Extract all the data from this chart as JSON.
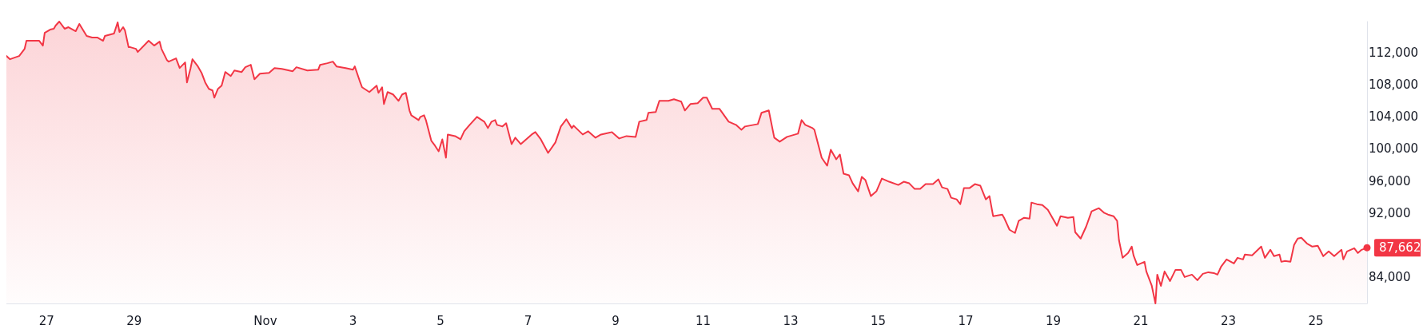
{
  "chart_data": {
    "type": "area",
    "color": "#f23645",
    "line_style": "solid",
    "marker": "none",
    "grid": false,
    "x": [
      "--10-26T02:00",
      "--10-26T04:00",
      "--10-26T09:00",
      "--10-26T12:00",
      "--10-26T13:00",
      "--10-26T15:00",
      "--10-26T20:00",
      "--10-26T22:00",
      "--10-26T23:00",
      "--10-27T02:00",
      "--10-27T04:00",
      "--10-27T05:00",
      "--10-27T07:00",
      "--10-27T10:00",
      "--10-27T12:00",
      "--10-27T16:00",
      "--10-27T18:00",
      "--10-27T22:00",
      "--10-28T01:00",
      "--10-28T04:00",
      "--10-28T07:00",
      "--10-28T08:00",
      "--10-28T13:00",
      "--10-28T15:00",
      "--10-28T16:00",
      "--10-28T18:00",
      "--10-28T19:00",
      "--10-28T21:00",
      "--10-28T22:00",
      "--10-29T01:00",
      "--10-29T02:00",
      "--10-29T08:00",
      "--10-29T11:00",
      "--10-29T14:00",
      "--10-29T15:00",
      "--10-29T18:00",
      "--10-29T19:00",
      "--10-29T23:00",
      "--10-30T01:00",
      "--10-30T04:00",
      "--10-30T05:00",
      "--10-30T07:00",
      "--10-30T08:00",
      "--10-30T11:00",
      "--10-30T13:00",
      "--10-30T15:00",
      "--10-30T17:00",
      "--10-30T19:00",
      "--10-30T20:00",
      "--10-30T22:00",
      "--10-31T00:00",
      "--10-31T02:00",
      "--10-31T05:00",
      "--10-31T07:00",
      "--10-31T11:00",
      "--10-31T13:00",
      "--10-31T16:00",
      "--10-31T18:00",
      "--10-31T21:00",
      "--11-01T02:00",
      "--11-01T05:00",
      "--11-01T09:00",
      "--11-01T15:00",
      "--11-01T17:00",
      "--11-01T23:00",
      "--11-02T05:00",
      "--11-02T06:00",
      "--11-02T10:00",
      "--11-02T13:00",
      "--11-02T15:00",
      "--11-02T20:00",
      "--11-03T00:00",
      "--11-03T01:00",
      "--11-03T04:00",
      "--11-03T05:00",
      "--11-03T09:00",
      "--11-03T13:00",
      "--11-03T14:00",
      "--11-03T16:00",
      "--11-03T17:00",
      "--11-03T19:00",
      "--11-03T22:00",
      "--11-04T01:00",
      "--11-04T03:00",
      "--11-04T05:00",
      "--11-04T07:00",
      "--11-04T08:00",
      "--11-04T12:00",
      "--11-04T13:00",
      "--11-04T15:00",
      "--11-04T16:00",
      "--11-04T19:00",
      "--11-04T21:00",
      "--11-04T23:00",
      "--11-05T01:00",
      "--11-05T03:00",
      "--11-05T04:00",
      "--11-05T08:00",
      "--11-05T11:00",
      "--11-05T13:00",
      "--11-05T16:00",
      "--11-05T20:00",
      "--11-06T00:00",
      "--11-06T02:00",
      "--11-06T04:00",
      "--11-06T06:00",
      "--11-06T07:00",
      "--11-06T10:00",
      "--11-06T12:00",
      "--11-06T15:00",
      "--11-06T17:00",
      "--11-06T20:00",
      "--11-06T22:00",
      "--11-07T02:00",
      "--11-07T04:00",
      "--11-07T07:00",
      "--11-07T11:00",
      "--11-07T15:00",
      "--11-07T18:00",
      "--11-07T21:00",
      "--11-08T00:00",
      "--11-08T01:00",
      "--11-08T06:00",
      "--11-08T09:00",
      "--11-08T13:00",
      "--11-08T16:00",
      "--11-08T22:00",
      "--11-09T02:00",
      "--11-09T06:00",
      "--11-09T11:00",
      "--11-09T13:00",
      "--11-09T17:00",
      "--11-09T18:00",
      "--11-09T22:00",
      "--11-10T00:00",
      "--11-10T05:00",
      "--11-10T08:00",
      "--11-10T12:00",
      "--11-10T14:00",
      "--11-10T17:00",
      "--11-10T21:00",
      "--11-11T00:00",
      "--11-11T02:00",
      "--11-11T05:00",
      "--11-11T09:00",
      "--11-11T14:00",
      "--11-11T18:00",
      "--11-11T21:00",
      "--11-11T23:00",
      "--11-12T06:00",
      "--11-12T08:00",
      "--11-12T12:00",
      "--11-12T15:00",
      "--11-12T18:00",
      "--11-12T22:00",
      "--11-13T01:00",
      "--11-13T04:00",
      "--11-13T06:00",
      "--11-13T08:00",
      "--11-13T12:00",
      "--11-13T13:00",
      "--11-13T17:00",
      "--11-13T20:00",
      "--11-13T22:00",
      "--11-14T01:00",
      "--11-14T03:00",
      "--11-14T05:00",
      "--11-14T08:00",
      "--11-14T10:00",
      "--11-14T13:00",
      "--11-14T15:00",
      "--11-14T17:00",
      "--11-14T20:00",
      "--11-14T23:00",
      "--11-15T02:00",
      "--11-15T06:00",
      "--11-15T11:00",
      "--11-15T14:00",
      "--11-15T17:00",
      "--11-15T20:00",
      "--11-15T23:00",
      "--11-16T02:00",
      "--11-16T06:00",
      "--11-16T09:00",
      "--11-16T11:00",
      "--11-16T14:00",
      "--11-16T16:00",
      "--11-16T19:00",
      "--11-16T21:00",
      "--11-16T23:00",
      "--11-17T02:00",
      "--11-17T05:00",
      "--11-17T08:00",
      "--11-17T11:00",
      "--11-17T13:00",
      "--11-17T15:00",
      "--11-17T20:00",
      "--11-17T21:00",
      "--11-18T00:00",
      "--11-18T03:00",
      "--11-18T05:00",
      "--11-18T08:00",
      "--11-18T11:00",
      "--11-18T12:00",
      "--11-18T15:00",
      "--11-18T18:00",
      "--11-18T21:00",
      "--11-19T02:00",
      "--11-19T04:00",
      "--11-19T08:00",
      "--11-19T11:00",
      "--11-19T12:00",
      "--11-19T15:00",
      "--11-19T18:00",
      "--11-19T21:00",
      "--11-20T01:00",
      "--11-20T04:00",
      "--11-20T06:00",
      "--11-20T09:00",
      "--11-20T11:00",
      "--11-20T12:00",
      "--11-20T14:00",
      "--11-20T17:00",
      "--11-20T19:00",
      "--11-20T20:00",
      "--11-20T22:00",
      "--11-21T02:00",
      "--11-21T03:00",
      "--11-21T06:00",
      "--11-21T08:00",
      "--11-21T09:00",
      "--11-21T11:00",
      "--11-21T13:00",
      "--11-21T16:00",
      "--11-21T19:00",
      "--11-21T22:00",
      "--11-22T00:00",
      "--11-22T04:00",
      "--11-22T07:00",
      "--11-22T10:00",
      "--11-22T13:00",
      "--11-22T16:00",
      "--11-22T18:00",
      "--11-22T20:00",
      "--11-22T23:00",
      "--11-23T03:00",
      "--11-23T05:00",
      "--11-23T08:00",
      "--11-23T09:00",
      "--11-23T13:00",
      "--11-23T18:00",
      "--11-23T20:00",
      "--11-23T23:00",
      "--11-24T01:00",
      "--11-24T04:00",
      "--11-24T05:00",
      "--11-24T07:00",
      "--11-24T10:00",
      "--11-24T12:00",
      "--11-24T14:00",
      "--11-24T16:00",
      "--11-24T19:00",
      "--11-24T22:00",
      "--11-25T01:00",
      "--11-25T04:00",
      "--11-25T07:00",
      "--11-25T10:00",
      "--11-25T14:00",
      "--11-25T15:00",
      "--11-25T17:00",
      "--11-25T21:00",
      "--11-25T23:00",
      "--11-26T01:00",
      "--11-26T04:00"
    ],
    "values": [
      111600,
      111200,
      111600,
      112500,
      113500,
      113500,
      113500,
      112900,
      114500,
      114900,
      115000,
      115400,
      115900,
      115000,
      115200,
      114700,
      115600,
      114100,
      113900,
      113900,
      113500,
      114100,
      114400,
      115800,
      114600,
      115200,
      114800,
      112700,
      112700,
      112500,
      112100,
      113500,
      112900,
      113400,
      112500,
      111100,
      110900,
      111300,
      110100,
      110800,
      108300,
      110100,
      111200,
      110300,
      109500,
      108300,
      107500,
      107300,
      106400,
      107500,
      107900,
      109600,
      109100,
      109800,
      109600,
      110200,
      110500,
      108700,
      109400,
      109500,
      110100,
      110000,
      109700,
      110200,
      109800,
      109900,
      110500,
      110700,
      110900,
      110300,
      110100,
      109900,
      110300,
      108300,
      107700,
      107100,
      107900,
      107000,
      107700,
      105600,
      107100,
      106800,
      106000,
      106800,
      107000,
      104800,
      104200,
      103600,
      104000,
      104200,
      103600,
      101000,
      100400,
      99700,
      101200,
      98900,
      101800,
      101600,
      101200,
      102200,
      103000,
      104000,
      103400,
      102600,
      103400,
      103600,
      103000,
      102800,
      103200,
      100600,
      101400,
      100600,
      101000,
      101800,
      102100,
      101200,
      99500,
      100800,
      102800,
      103700,
      102600,
      102900,
      101800,
      102200,
      101400,
      101800,
      102100,
      101300,
      101600,
      101500,
      103400,
      103600,
      104500,
      104600,
      106000,
      106000,
      106200,
      105900,
      104800,
      105600,
      105700,
      106400,
      106400,
      105000,
      105000,
      103400,
      103000,
      102400,
      102800,
      103100,
      104500,
      104800,
      101400,
      100900,
      101500,
      101700,
      101900,
      103600,
      103000,
      102600,
      102400,
      98900,
      97900,
      99900,
      98700,
      99300,
      96900,
      96700,
      95700,
      94700,
      96500,
      96100,
      94100,
      94700,
      96300,
      95900,
      95500,
      95900,
      95700,
      95000,
      95000,
      95600,
      95600,
      96200,
      95200,
      95000,
      93900,
      93700,
      93100,
      95100,
      95100,
      95600,
      95400,
      93700,
      94100,
      91600,
      91800,
      91400,
      89900,
      89500,
      91000,
      91400,
      91300,
      93300,
      93100,
      93000,
      92400,
      90400,
      91600,
      91400,
      91500,
      89600,
      88800,
      90300,
      92200,
      92600,
      92000,
      91800,
      91600,
      91000,
      88600,
      86400,
      87000,
      87800,
      86700,
      85500,
      85900,
      84700,
      82900,
      80700,
      84300,
      82900,
      84700,
      83500,
      84900,
      84900,
      84000,
      84300,
      83600,
      84400,
      84600,
      84500,
      84300,
      85300,
      86200,
      85700,
      86400,
      86200,
      86800,
      86700,
      87800,
      86400,
      87400,
      86600,
      86800,
      85900,
      86000,
      85900,
      88000,
      88800,
      88900,
      88200,
      87800,
      87900,
      86600,
      87200,
      86600,
      87400,
      86200,
      87200,
      87600,
      87000,
      87400,
      87662
    ],
    "xticks": [
      {
        "value": "--10-27",
        "label": "27"
      },
      {
        "value": "--10-29",
        "label": "29"
      },
      {
        "value": "--11-01",
        "label": "Nov"
      },
      {
        "value": "--11-03",
        "label": "3"
      },
      {
        "value": "--11-05",
        "label": "5"
      },
      {
        "value": "--11-07",
        "label": "7"
      },
      {
        "value": "--11-09",
        "label": "9"
      },
      {
        "value": "--11-11",
        "label": "11"
      },
      {
        "value": "--11-13",
        "label": "13"
      },
      {
        "value": "--11-15",
        "label": "15"
      },
      {
        "value": "--11-17",
        "label": "17"
      },
      {
        "value": "--11-19",
        "label": "19"
      },
      {
        "value": "--11-21",
        "label": "21"
      },
      {
        "value": "--11-23",
        "label": "23"
      },
      {
        "value": "--11-25",
        "label": "25"
      }
    ],
    "xlim": [
      "--10-26T02:00",
      "--11-26T04:00"
    ],
    "ylim": [
      80700,
      115900
    ],
    "yticks": [
      {
        "value": 84000,
        "label": "84,000"
      },
      {
        "value": 92000,
        "label": "92,000"
      },
      {
        "value": 96000,
        "label": "96,000"
      },
      {
        "value": 100000,
        "label": "100,000"
      },
      {
        "value": 104000,
        "label": "104,000"
      },
      {
        "value": 108000,
        "label": "108,000"
      },
      {
        "value": 112000,
        "label": "112,000"
      }
    ],
    "annotations": [
      {
        "text": "87,662",
        "x": "--11-26T04:00",
        "y": 87662
      }
    ]
  }
}
